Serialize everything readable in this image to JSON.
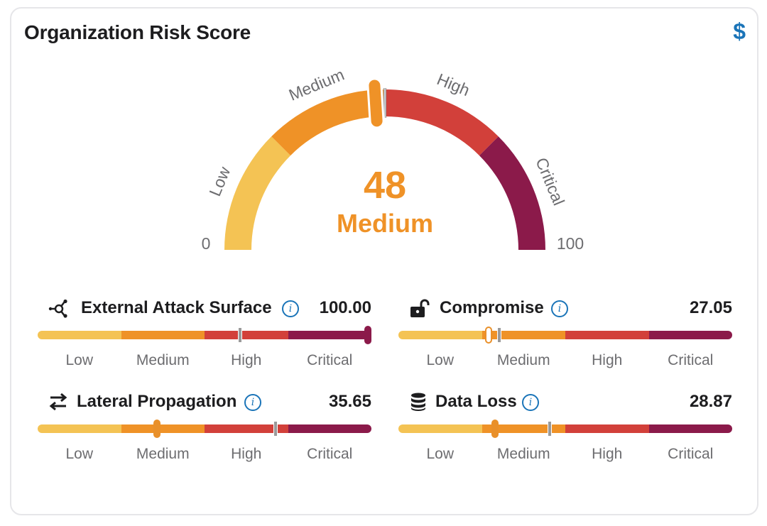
{
  "card": {
    "title": "Organization Risk Score",
    "currency_icon": "$"
  },
  "gauge": {
    "score": "48",
    "score_value": 48,
    "level": "Medium",
    "min_label": "0",
    "max_label": "100",
    "bands": [
      {
        "label": "Low",
        "from": 0,
        "to": 25,
        "color": "#f4c354"
      },
      {
        "label": "Medium",
        "from": 25,
        "to": 50,
        "color": "#ef9227"
      },
      {
        "label": "High",
        "from": 50,
        "to": 75,
        "color": "#d2403a"
      },
      {
        "label": "Critical",
        "from": 75,
        "to": 100,
        "color": "#8b1a4a"
      }
    ],
    "marker_value": 48,
    "tick_value": 50
  },
  "scale_labels": [
    "Low",
    "Medium",
    "High",
    "Critical"
  ],
  "colors": {
    "low": "#f4c354",
    "medium": "#ef9227",
    "high": "#d2403a",
    "critical": "#8b1a4a",
    "accent": "#1a74b8",
    "score": "#ef9227"
  },
  "metrics": [
    {
      "name": "External Attack Surface",
      "icon": "network-nodes-icon",
      "value": "100.00",
      "position": 1.0,
      "tick": 0.605,
      "handle_style": "critical"
    },
    {
      "name": "Compromise",
      "icon": "unlocked-lock-icon",
      "value": "27.05",
      "position": 0.2705,
      "tick": 0.3,
      "handle_style": "outline"
    },
    {
      "name": "Lateral Propagation",
      "icon": "arrows-exchange-icon",
      "value": "35.65",
      "position": 0.3565,
      "tick": 0.71,
      "handle_style": "solid"
    },
    {
      "name": "Data Loss",
      "icon": "database-icon",
      "value": "28.87",
      "position": 0.2887,
      "tick": 0.45,
      "handle_style": "solid"
    }
  ]
}
